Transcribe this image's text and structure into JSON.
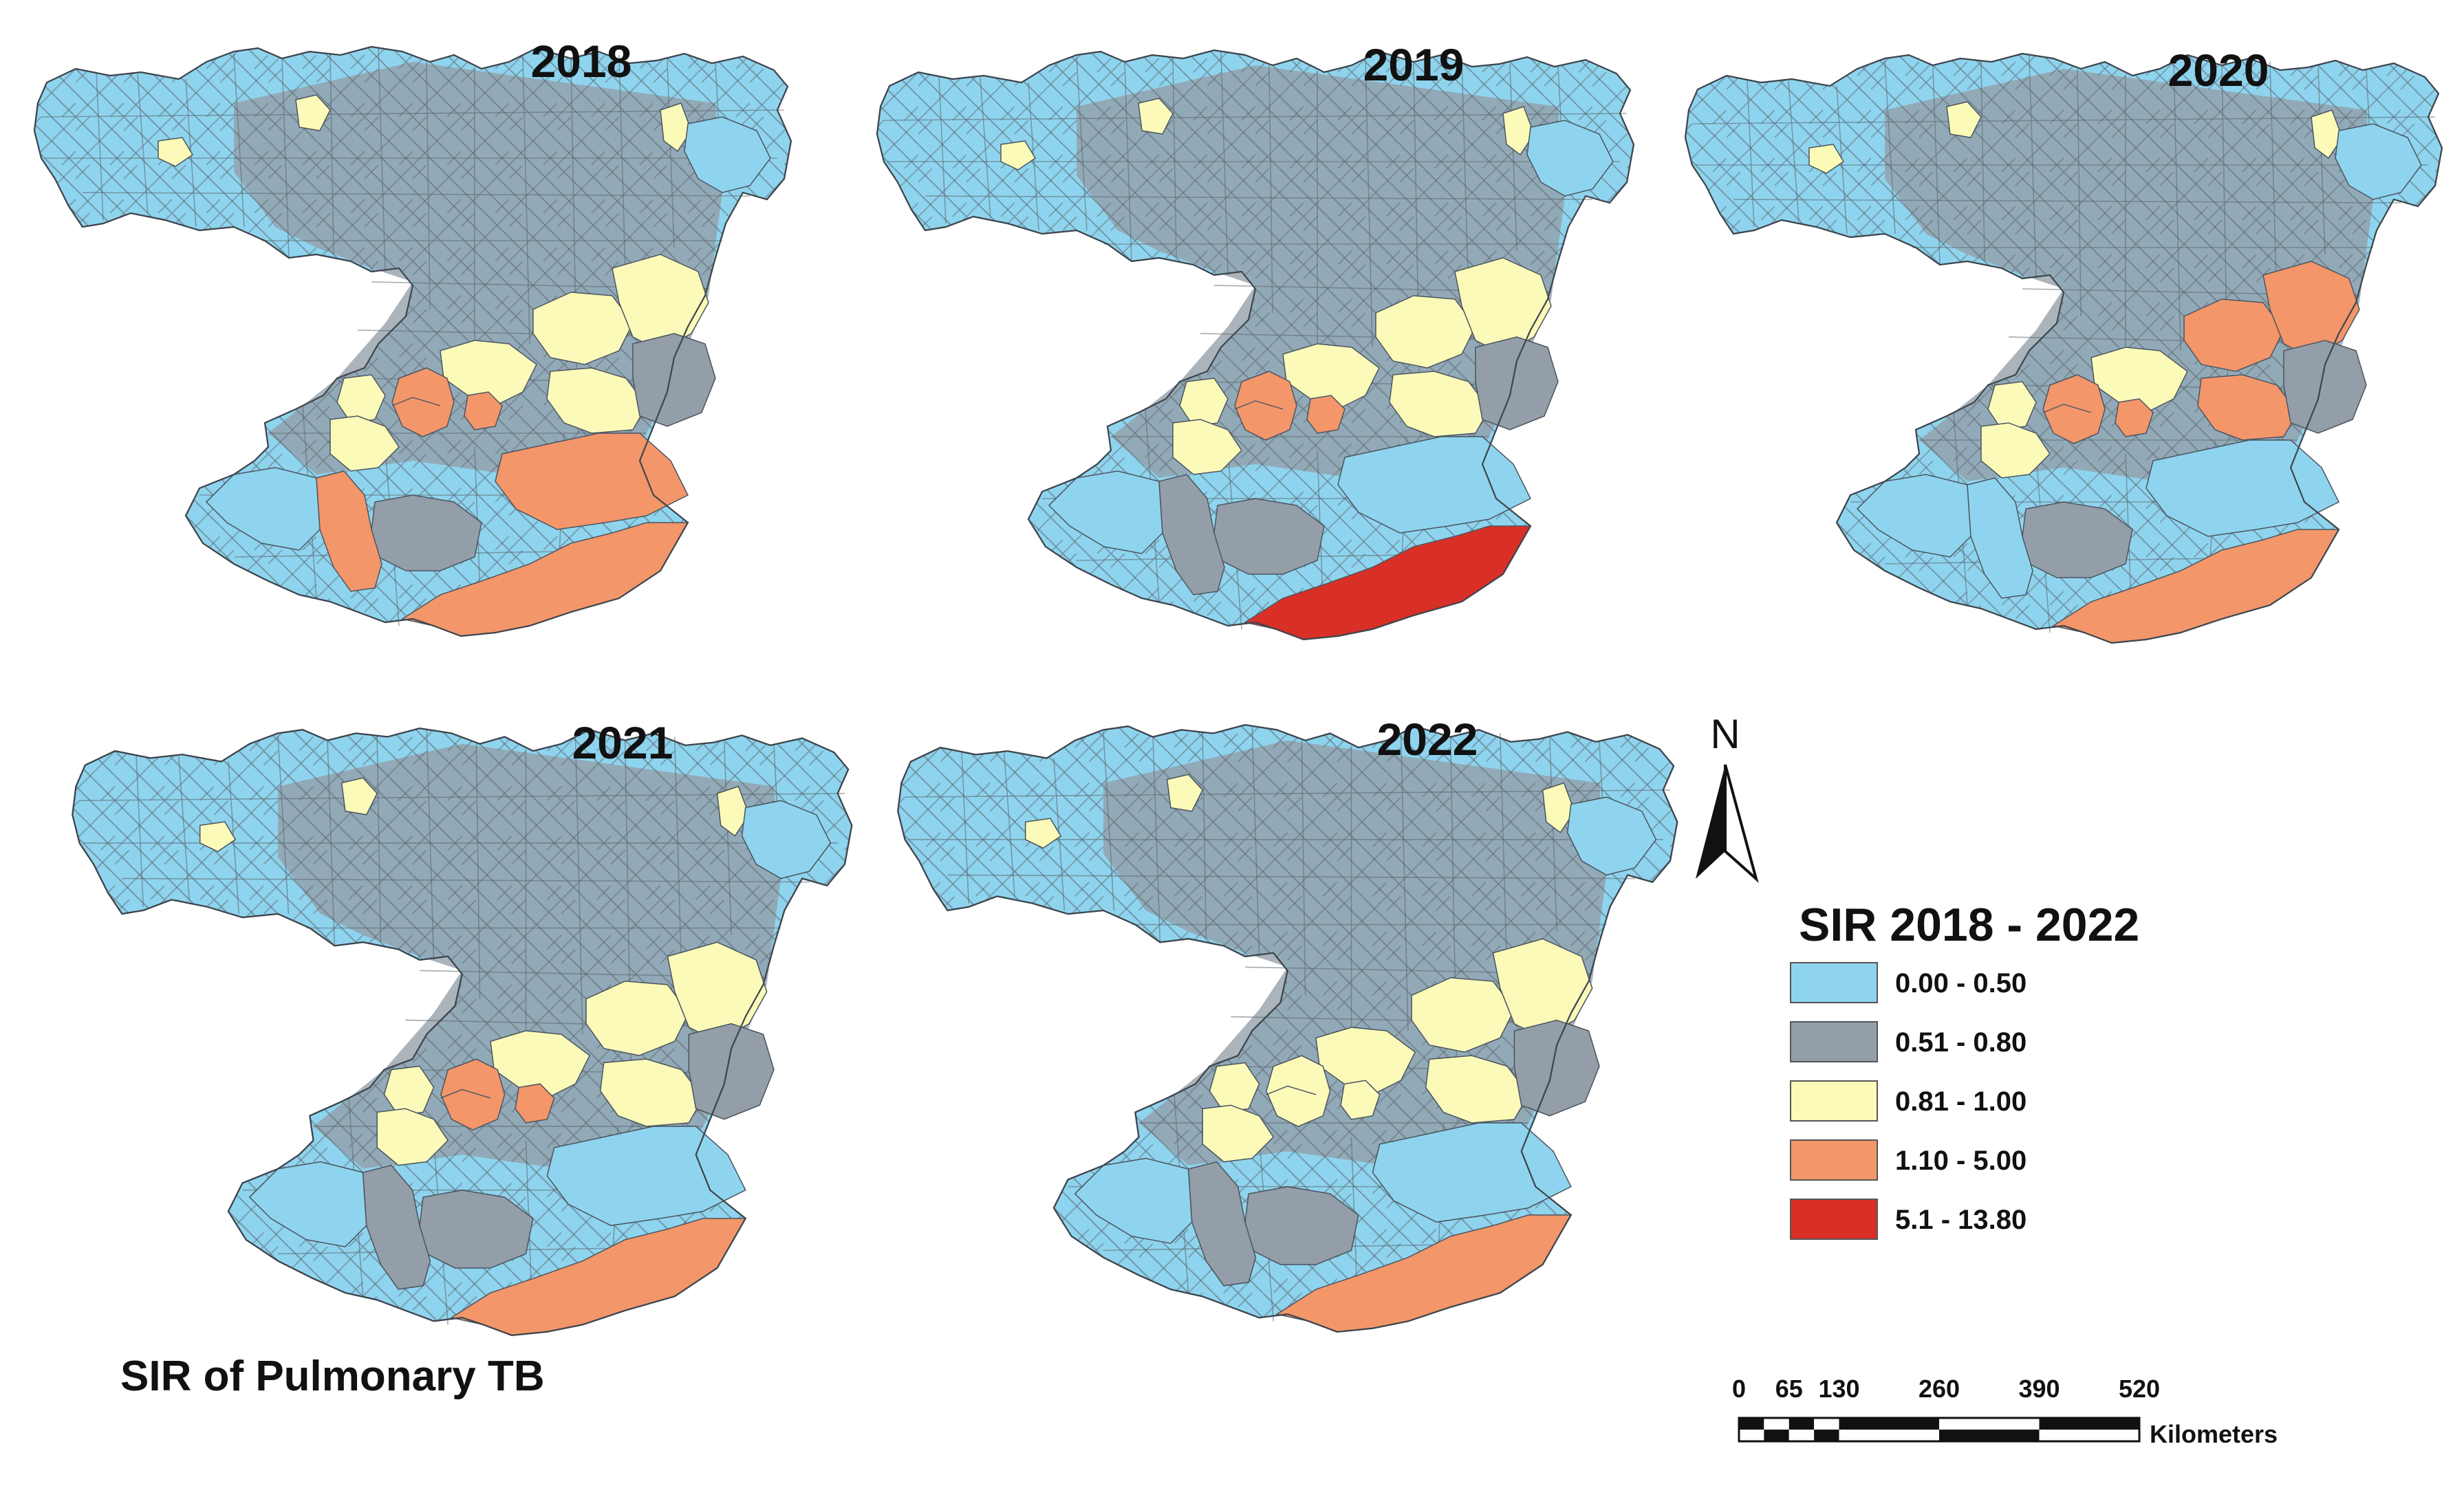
{
  "title": "SIR of Pulmonary TB",
  "legend": {
    "title": "SIR 2018 - 2022",
    "classes": [
      {
        "label": "0.00 - 0.50",
        "color": "#8fd4ee"
      },
      {
        "label": "0.51 - 0.80",
        "color": "#939ea8"
      },
      {
        "label": "0.81 - 1.00",
        "color": "#fcfab9"
      },
      {
        "label": "1.10 - 5.00",
        "color": "#f3966a"
      },
      {
        "label": "5.1 - 13.80",
        "color": "#d83027"
      }
    ]
  },
  "panels": [
    {
      "year": "2018",
      "south_coast_class": 3,
      "west_coast_class": 3,
      "southeast_class": 3,
      "central_hotspot_class": 3,
      "east_inland_class": 2
    },
    {
      "year": "2019",
      "south_coast_class": 4,
      "west_coast_class": 1,
      "southeast_class": 0,
      "central_hotspot_class": 3,
      "east_inland_class": 2
    },
    {
      "year": "2020",
      "south_coast_class": 3,
      "west_coast_class": 0,
      "southeast_class": 0,
      "central_hotspot_class": 3,
      "east_inland_class": 3
    },
    {
      "year": "2021",
      "south_coast_class": 3,
      "west_coast_class": 1,
      "southeast_class": 0,
      "central_hotspot_class": 3,
      "east_inland_class": 2
    },
    {
      "year": "2022",
      "south_coast_class": 3,
      "west_coast_class": 1,
      "southeast_class": 0,
      "central_hotspot_class": 2,
      "east_inland_class": 2
    }
  ],
  "north_arrow": {
    "label": "N"
  },
  "scale_bar": {
    "ticks": [
      "0",
      "65",
      "130",
      "260",
      "390",
      "520"
    ],
    "unit": "Kilometers"
  }
}
